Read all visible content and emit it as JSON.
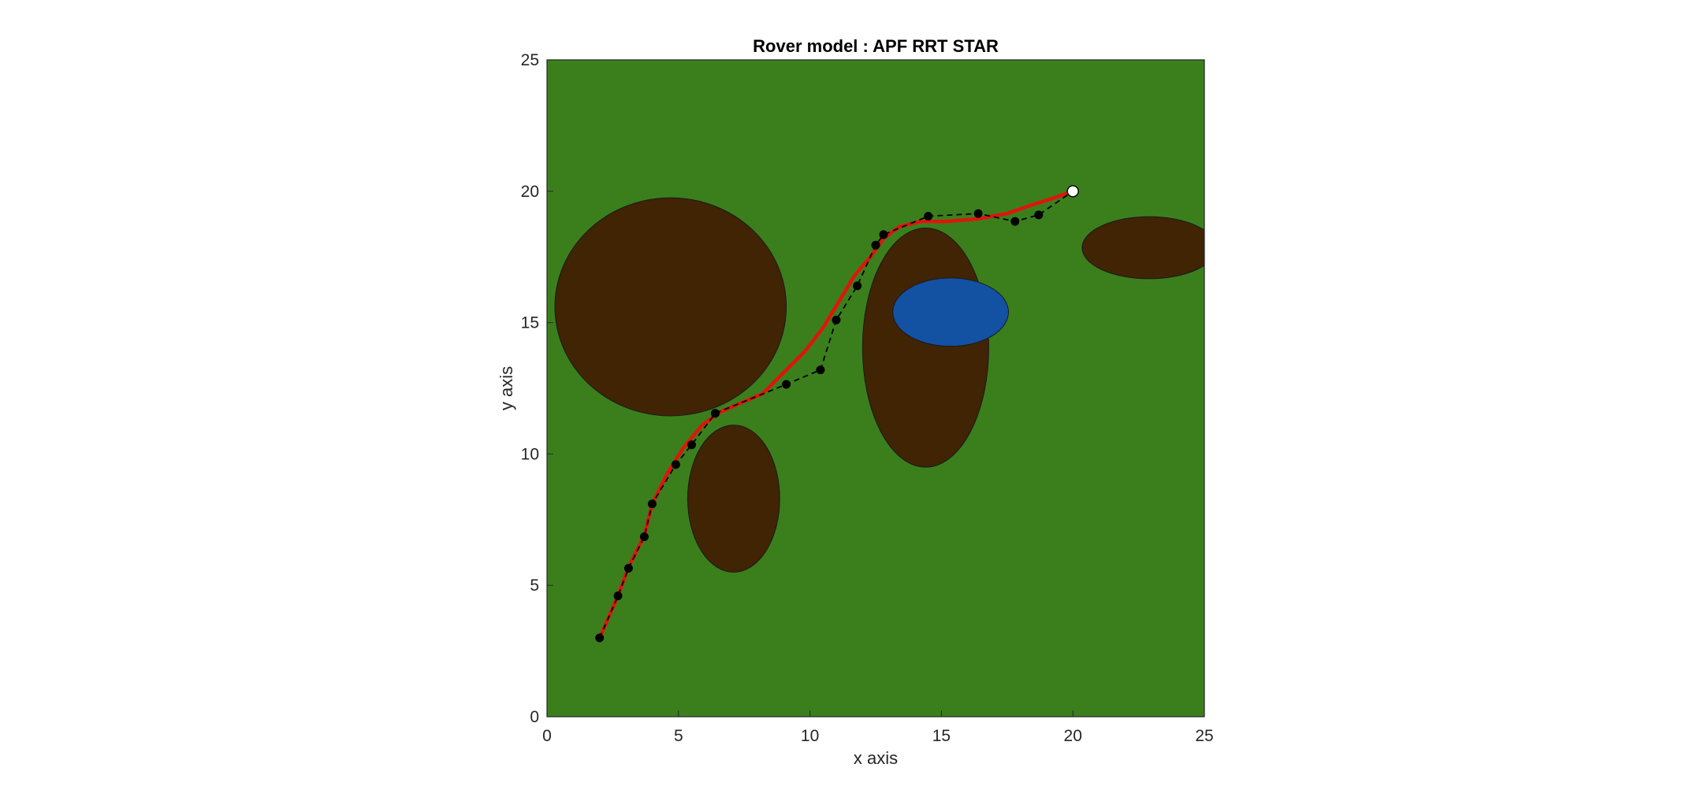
{
  "chart_data": {
    "type": "scatter",
    "title": "Rover model : APF RRT STAR",
    "xlabel": "x axis",
    "ylabel": "y axis",
    "xlim": [
      0,
      25
    ],
    "ylim": [
      0,
      25
    ],
    "xticks": [
      0,
      5,
      10,
      15,
      20,
      25
    ],
    "yticks": [
      0,
      5,
      10,
      15,
      20,
      25
    ],
    "grid": false,
    "legend": "none",
    "colors": {
      "background": "#3b7f1d",
      "obstacle": "#402404",
      "water": "#1351a3",
      "smooth_path": "#e0140c",
      "waypoints": "#000000",
      "goal": "#ffffff"
    },
    "obstacles": [
      {
        "kind": "terrain",
        "cx": 4.7,
        "cy": 15.6,
        "rx": 4.4,
        "ry": 4.15
      },
      {
        "kind": "terrain",
        "cx": 7.1,
        "cy": 8.3,
        "rx": 1.75,
        "ry": 2.8
      },
      {
        "kind": "terrain",
        "cx": 14.4,
        "cy": 14.05,
        "rx": 2.4,
        "ry": 4.55
      },
      {
        "kind": "terrain",
        "cx": 22.9,
        "cy": 17.85,
        "rx": 2.55,
        "ry": 1.18
      },
      {
        "kind": "water",
        "cx": 15.35,
        "cy": 15.4,
        "rx": 2.2,
        "ry": 1.3
      }
    ],
    "series": [
      {
        "style": "dashed-markers",
        "x": [
          2.0,
          2.7,
          3.1,
          3.7,
          4.0,
          4.9,
          5.5,
          6.4,
          9.1,
          10.4,
          11.0,
          11.8,
          12.5,
          12.8,
          14.5,
          16.4,
          17.8,
          18.7,
          20.0
        ],
        "y": [
          3.0,
          4.6,
          5.65,
          6.85,
          8.1,
          9.6,
          10.35,
          11.55,
          12.65,
          13.2,
          15.1,
          16.4,
          17.95,
          18.35,
          19.05,
          19.15,
          18.85,
          19.1,
          20.0
        ]
      },
      {
        "style": "smooth-line",
        "x": [
          2.0,
          2.7,
          3.1,
          3.7,
          4.0,
          4.6,
          5.2,
          5.9,
          6.6,
          7.4,
          8.2,
          9.0,
          9.8,
          10.5,
          11.1,
          11.7,
          12.3,
          12.8,
          13.4,
          14.2,
          15.2,
          16.4,
          17.5,
          18.5,
          19.3,
          20.0
        ],
        "y": [
          3.0,
          4.6,
          5.7,
          6.9,
          8.1,
          9.3,
          10.25,
          11.1,
          11.6,
          11.95,
          12.3,
          13.1,
          13.9,
          14.8,
          15.8,
          16.8,
          17.5,
          18.2,
          18.65,
          18.85,
          18.85,
          18.95,
          19.15,
          19.5,
          19.75,
          20.0
        ]
      }
    ],
    "goal": {
      "x": 20.0,
      "y": 20.0
    }
  }
}
